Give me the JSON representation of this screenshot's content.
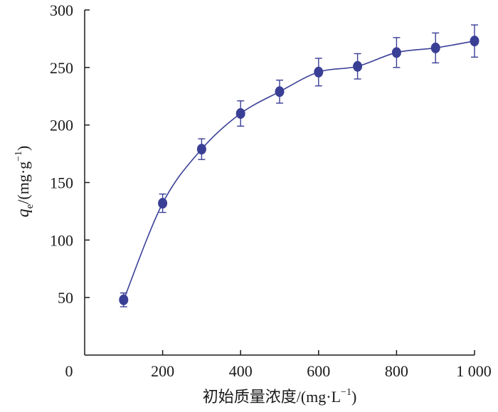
{
  "chart_data": {
    "type": "scatter",
    "xlabel": "初始质量浓度/(mg·L",
    "xlabel_sup": "−1",
    "xlabel_tail": ")",
    "ylabel_q": "q",
    "ylabel_sub": "e",
    "ylabel_unit": "/(mg·g",
    "ylabel_sup": "−1",
    "ylabel_tail": ")",
    "xlim": [
      0,
      1000
    ],
    "ylim": [
      0,
      300
    ],
    "x_ticks": [
      0,
      200,
      400,
      600,
      800,
      1000
    ],
    "x_tick_labels": [
      "0",
      "200",
      "400",
      "600",
      "800",
      "1 000"
    ],
    "y_ticks": [
      50,
      100,
      150,
      200,
      250,
      300
    ],
    "y_tick_labels": [
      "50",
      "100",
      "150",
      "200",
      "250",
      "300"
    ],
    "grid": false,
    "fitted_curve": true,
    "series": [
      {
        "x": [
          100,
          200,
          300,
          400,
          500,
          600,
          700,
          800,
          900,
          1000
        ],
        "y": [
          48,
          132,
          179,
          210,
          229,
          246,
          251,
          263,
          267,
          273
        ],
        "error": [
          6,
          8,
          9,
          11,
          10,
          12,
          11,
          13,
          13,
          14
        ]
      }
    ],
    "colors": {
      "series": "#3a3f96",
      "axis": "#1a1a1a"
    }
  }
}
